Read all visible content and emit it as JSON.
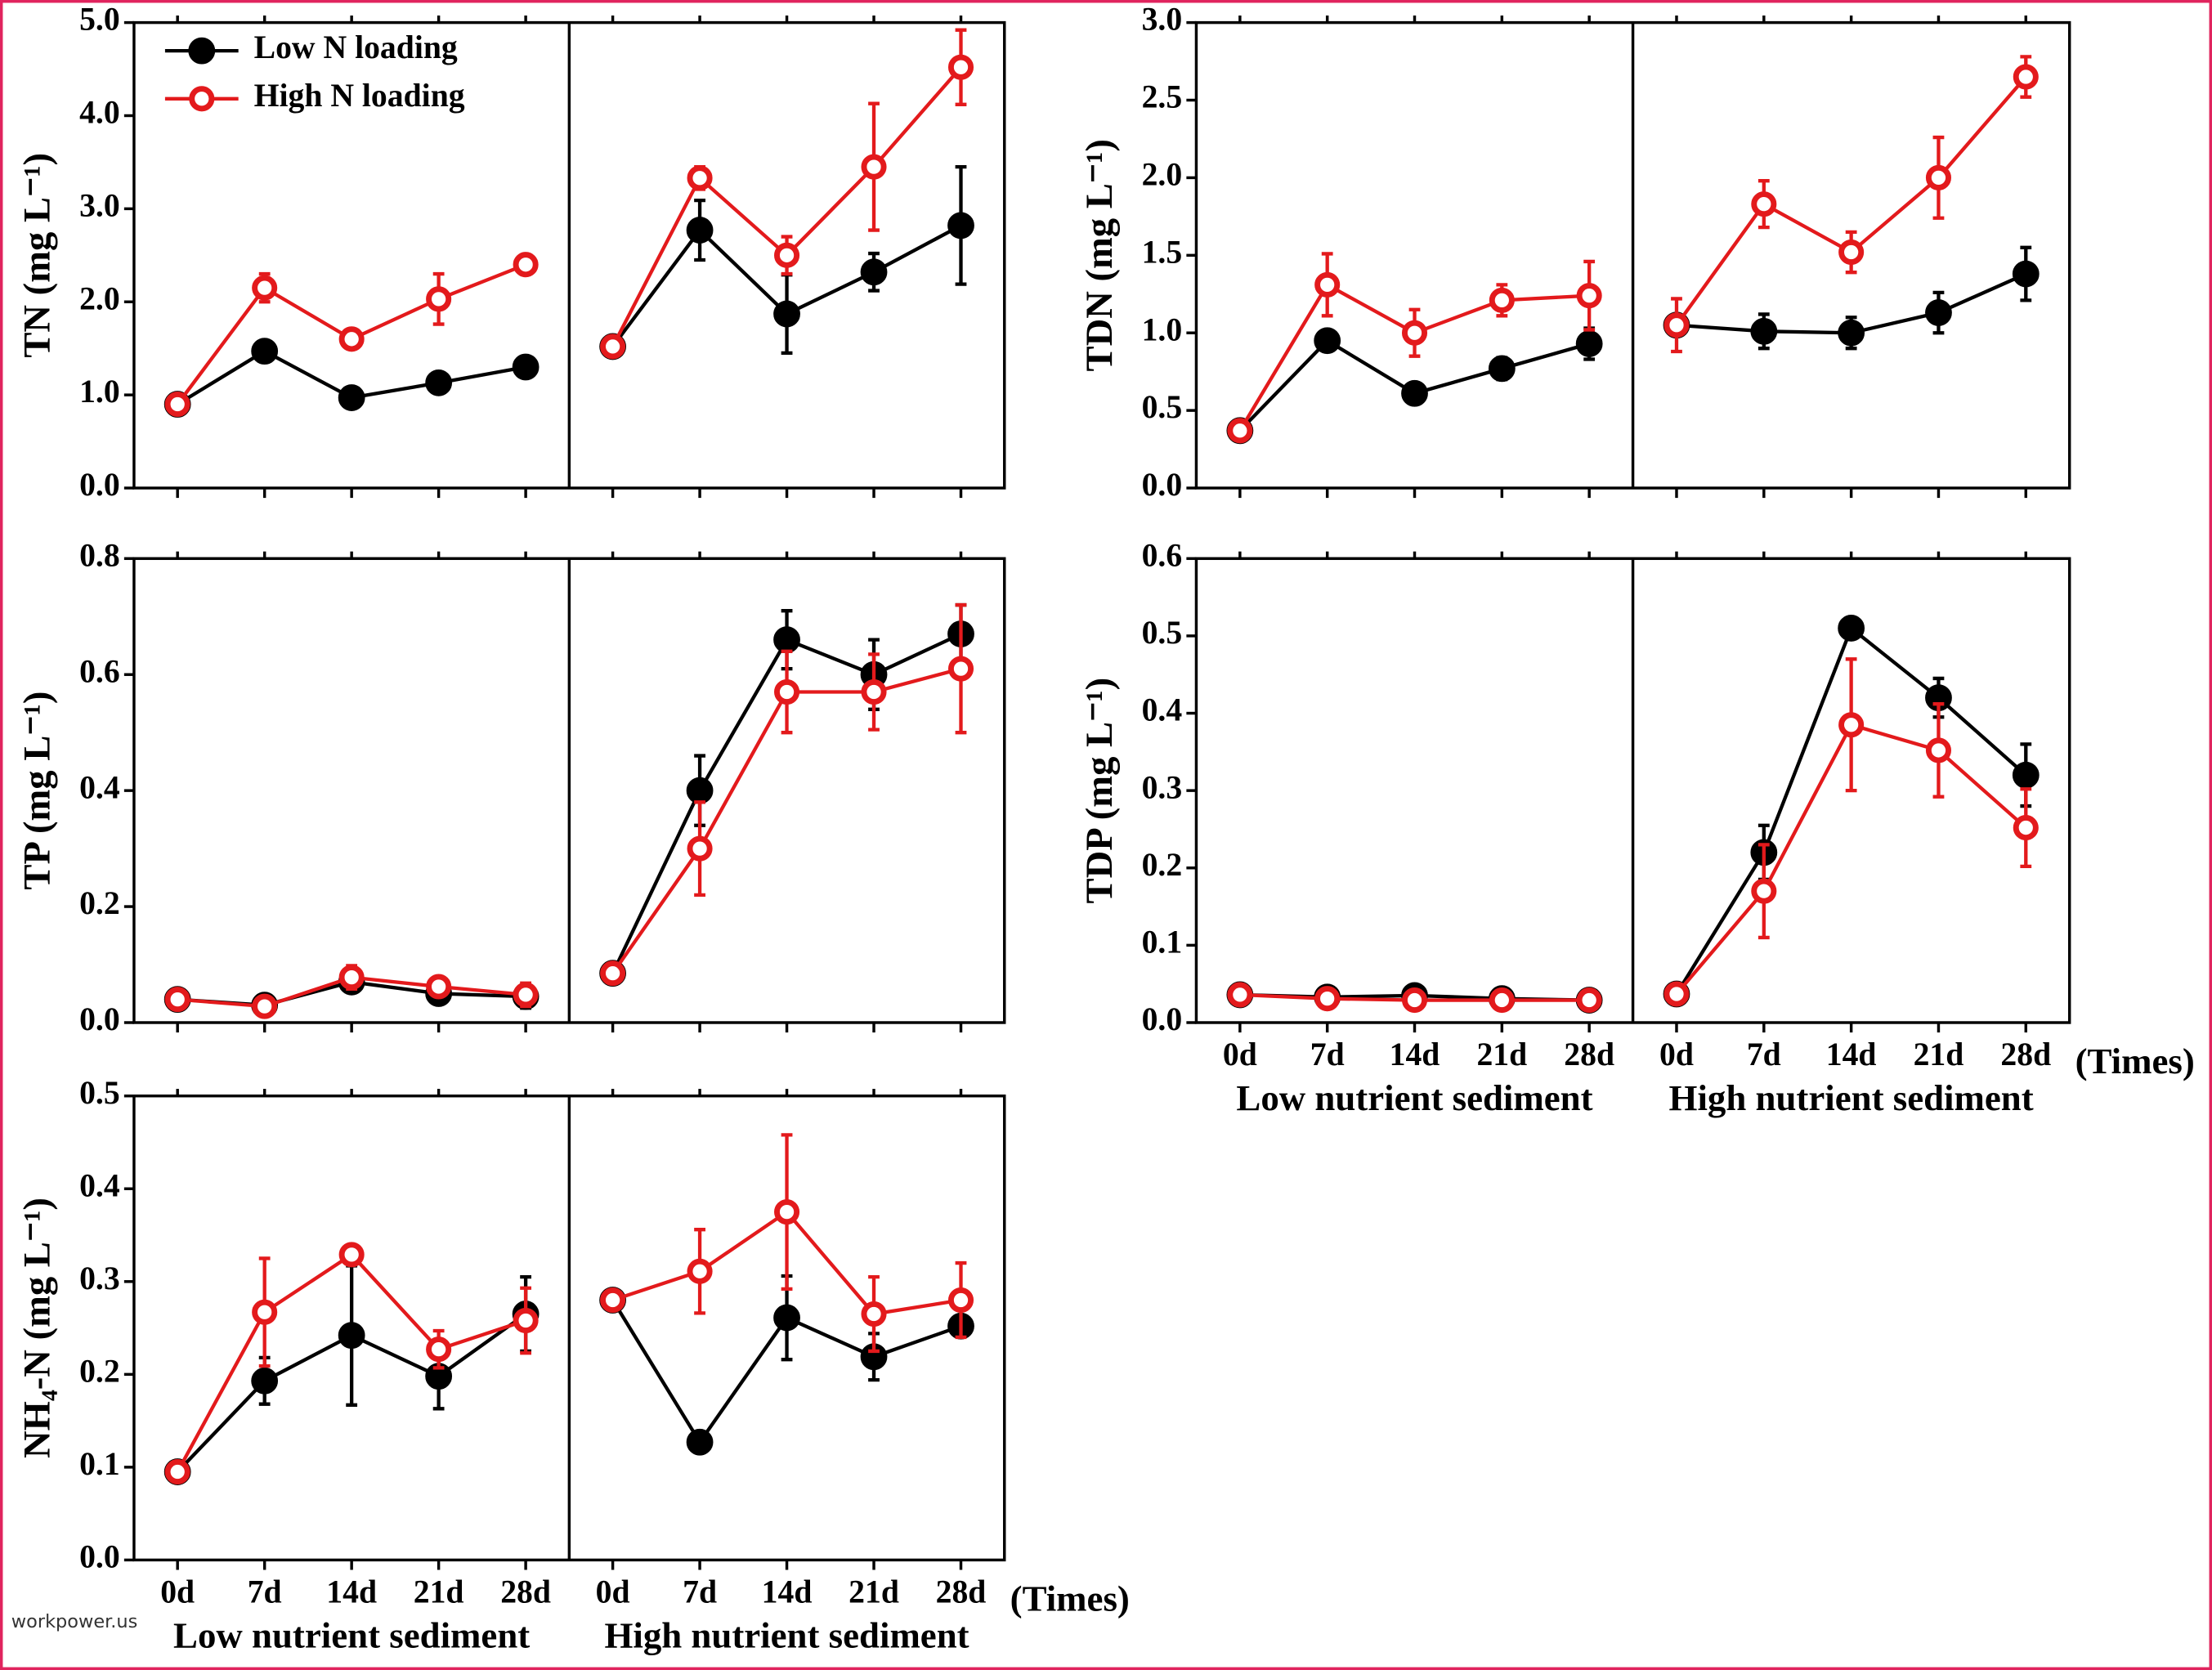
{
  "chart_data": [
    {
      "type": "line",
      "ylabel": "TN (mg L⁻¹)",
      "ylim": [
        0,
        5
      ],
      "yticks": [
        {
          "value": 0,
          "label": "0.0"
        },
        {
          "value": 1,
          "label": "1.0"
        },
        {
          "value": 2,
          "label": "2.0"
        },
        {
          "value": 3,
          "label": "3.0"
        },
        {
          "value": 4,
          "label": "4.0"
        },
        {
          "value": 5,
          "label": "5.0"
        }
      ],
      "categories": [
        null,
        null,
        null,
        null,
        null,
        null,
        null,
        null,
        null,
        null
      ],
      "series": [
        {
          "name": "Low N loading",
          "color": "#000000",
          "marker": "filled",
          "values": [
            0.9,
            1.47,
            0.97,
            1.13,
            1.3,
            1.52,
            2.77,
            1.87,
            2.32,
            2.82
          ],
          "errors": [
            0.05,
            0.05,
            0.05,
            0.05,
            0.1,
            0.05,
            0.32,
            0.42,
            0.2,
            0.63
          ]
        },
        {
          "name": "High N loading",
          "color": "#e31a1c",
          "marker": "open",
          "values": [
            0.9,
            2.15,
            1.6,
            2.03,
            2.4,
            1.52,
            3.33,
            2.5,
            3.45,
            4.52
          ],
          "errors": [
            0.05,
            0.15,
            0.05,
            0.27,
            0.05,
            0.05,
            0.12,
            0.2,
            0.68,
            0.4
          ]
        }
      ]
    },
    {
      "type": "line",
      "ylabel": "TDN (mg L⁻¹)",
      "ylim": [
        0,
        3
      ],
      "yticks": [
        {
          "value": 0,
          "label": "0.0"
        },
        0.5,
        {
          "value": 1,
          "label": "1.0"
        },
        1.5,
        {
          "value": 2,
          "label": "2.0"
        },
        2.5,
        {
          "value": 3,
          "label": "3.0"
        }
      ],
      "categories": [
        null,
        null,
        null,
        null,
        null,
        null,
        null,
        null,
        null,
        null
      ],
      "series": [
        {
          "color": "#000000",
          "marker": "filled",
          "values": [
            0.37,
            0.95,
            0.61,
            0.77,
            0.93,
            1.05,
            1.01,
            1.0,
            1.13,
            1.38
          ],
          "errors": [
            0.03,
            0.03,
            0.03,
            0.07,
            0.1,
            0.05,
            0.11,
            0.1,
            0.13,
            0.17
          ]
        },
        {
          "color": "#e31a1c",
          "marker": "open",
          "values": [
            0.37,
            1.31,
            1.0,
            1.21,
            1.24,
            1.05,
            1.83,
            1.52,
            2.0,
            2.65
          ],
          "errors": [
            0.03,
            0.2,
            0.15,
            0.1,
            0.22,
            0.17,
            0.15,
            0.13,
            0.26,
            0.13
          ]
        }
      ]
    },
    {
      "type": "line",
      "ylabel": "TP (mg L⁻¹)",
      "ylim": [
        0,
        0.8
      ],
      "yticks": [
        {
          "value": 0,
          "label": "0.0"
        },
        0.2,
        0.4,
        0.6,
        0.8
      ],
      "categories": [
        null,
        null,
        null,
        null,
        null,
        null,
        null,
        null,
        null,
        null
      ],
      "series": [
        {
          "color": "#000000",
          "marker": "filled",
          "values": [
            0.04,
            0.03,
            0.07,
            0.05,
            0.045,
            0.085,
            0.4,
            0.66,
            0.6,
            0.67
          ],
          "errors": [
            0.01,
            0.01,
            0.01,
            0.01,
            0.02,
            0.01,
            0.06,
            0.05,
            0.06,
            0.05
          ]
        },
        {
          "color": "#e31a1c",
          "marker": "open",
          "values": [
            0.04,
            0.028,
            0.078,
            0.062,
            0.048,
            0.085,
            0.3,
            0.57,
            0.57,
            0.61
          ],
          "errors": [
            0.01,
            0.01,
            0.02,
            0.01,
            0.02,
            0.01,
            0.08,
            0.07,
            0.065,
            0.11
          ]
        }
      ]
    },
    {
      "type": "line",
      "ylabel": "TDP (mg L⁻¹)",
      "ylim": [
        0,
        0.6
      ],
      "yticks": [
        {
          "value": 0,
          "label": "0.0"
        },
        0.1,
        0.2,
        0.3,
        0.4,
        0.5,
        0.6
      ],
      "categories": [
        "0d",
        "7d",
        "14d",
        "21d",
        "28d",
        "0d",
        "7d",
        "14d",
        "21d",
        "28d"
      ],
      "groups": [
        "Low nutrient sediment",
        "High nutrient sediment"
      ],
      "xlabel": "(Times)",
      "series": [
        {
          "color": "#000000",
          "marker": "filled",
          "values": [
            0.036,
            0.033,
            0.035,
            0.031,
            0.029,
            0.037,
            0.22,
            0.51,
            0.42,
            0.32
          ],
          "errors": [
            0.005,
            0.005,
            0.005,
            0.005,
            0.005,
            0.005,
            0.035,
            0.005,
            0.025,
            0.04
          ]
        },
        {
          "color": "#e31a1c",
          "marker": "open",
          "values": [
            0.036,
            0.031,
            0.029,
            0.029,
            0.029,
            0.037,
            0.17,
            0.385,
            0.352,
            0.252
          ],
          "errors": [
            0.005,
            0.005,
            0.005,
            0.005,
            0.005,
            0.005,
            0.06,
            0.085,
            0.06,
            0.05
          ]
        }
      ]
    },
    {
      "type": "line",
      "ylabel": "NH₄-N (mg L⁻¹)",
      "ylim": [
        0,
        0.5
      ],
      "yticks": [
        {
          "value": 0,
          "label": "0.0"
        },
        0.1,
        0.2,
        0.3,
        0.4,
        0.5
      ],
      "categories": [
        "0d",
        "7d",
        "14d",
        "21d",
        "28d",
        "0d",
        "7d",
        "14d",
        "21d",
        "28d"
      ],
      "groups": [
        "Low nutrient sediment",
        "High nutrient sediment"
      ],
      "xlabel": "(Times)",
      "series": [
        {
          "color": "#000000",
          "marker": "filled",
          "values": [
            0.095,
            0.193,
            0.242,
            0.198,
            0.265,
            0.28,
            0.127,
            0.261,
            0.219,
            0.252
          ],
          "errors": [
            0.005,
            0.025,
            0.075,
            0.035,
            0.04,
            0.005,
            0.005,
            0.045,
            0.025,
            0.01
          ]
        },
        {
          "color": "#e31a1c",
          "marker": "open",
          "values": [
            0.095,
            0.267,
            0.329,
            0.227,
            0.258,
            0.28,
            0.311,
            0.375,
            0.265,
            0.28
          ],
          "errors": [
            0.005,
            0.058,
            0.005,
            0.02,
            0.035,
            0.005,
            0.045,
            0.083,
            0.04,
            0.04
          ]
        }
      ]
    }
  ],
  "watermark": "workpower.us"
}
